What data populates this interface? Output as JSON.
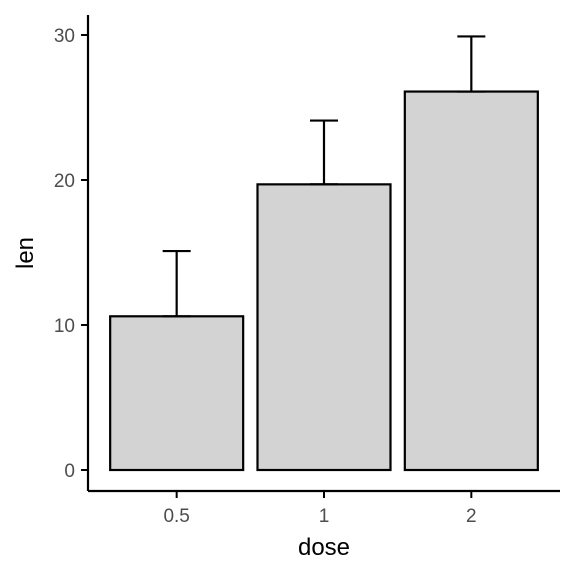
{
  "chart_data": {
    "type": "bar",
    "categories": [
      "0.5",
      "1",
      "2"
    ],
    "values": [
      10.6,
      19.7,
      26.1
    ],
    "error_upper": [
      15.1,
      24.1,
      29.9
    ],
    "xlabel": "dose",
    "ylabel": "len",
    "ylim": [
      0,
      30
    ],
    "yticks": [
      "0",
      "10",
      "20",
      "30"
    ],
    "bar_fill": "#d3d3d3",
    "bar_stroke": "#000000",
    "grid": false,
    "legend": "none"
  }
}
